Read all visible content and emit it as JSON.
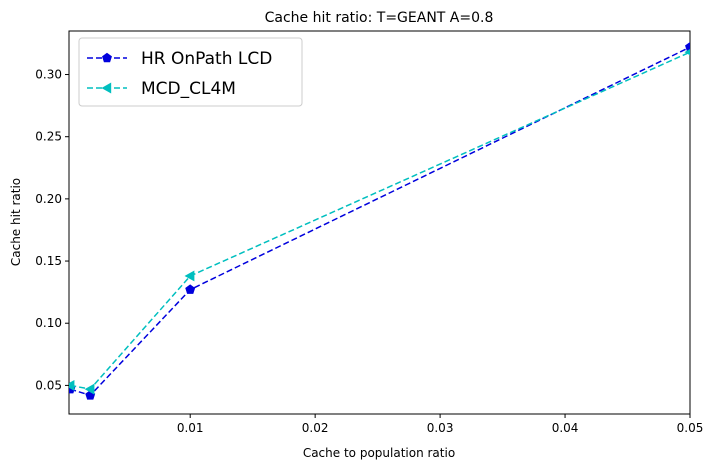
{
  "chart_data": {
    "type": "line",
    "title": "Cache hit ratio: T=GEANT A=0.8",
    "xlabel": "Cache to population ratio",
    "ylabel": "Cache hit ratio",
    "xlim": [
      0.0003,
      0.05
    ],
    "ylim": [
      0.027,
      0.335
    ],
    "xticks": [
      0.01,
      0.02,
      0.03,
      0.04,
      0.05
    ],
    "xtick_labels": [
      "0.01",
      "0.02",
      "0.03",
      "0.04",
      "0.05"
    ],
    "yticks": [
      0.05,
      0.1,
      0.15,
      0.2,
      0.25,
      0.3
    ],
    "ytick_labels": [
      "0.05",
      "0.10",
      "0.15",
      "0.20",
      "0.25",
      "0.30"
    ],
    "grid": false,
    "legend_position": "upper-left",
    "series": [
      {
        "name": "HR OnPath LCD",
        "color": "#0000dd",
        "marker": "pentagon",
        "linestyle": "dashed",
        "x": [
          0.0004,
          0.002,
          0.01,
          0.05
        ],
        "y": [
          0.047,
          0.042,
          0.127,
          0.322
        ]
      },
      {
        "name": "MCD_CL4M",
        "color": "#00bfbf",
        "marker": "triangle-left",
        "linestyle": "dashed",
        "x": [
          0.0004,
          0.002,
          0.01,
          0.05
        ],
        "y": [
          0.05,
          0.047,
          0.138,
          0.318
        ]
      }
    ]
  }
}
